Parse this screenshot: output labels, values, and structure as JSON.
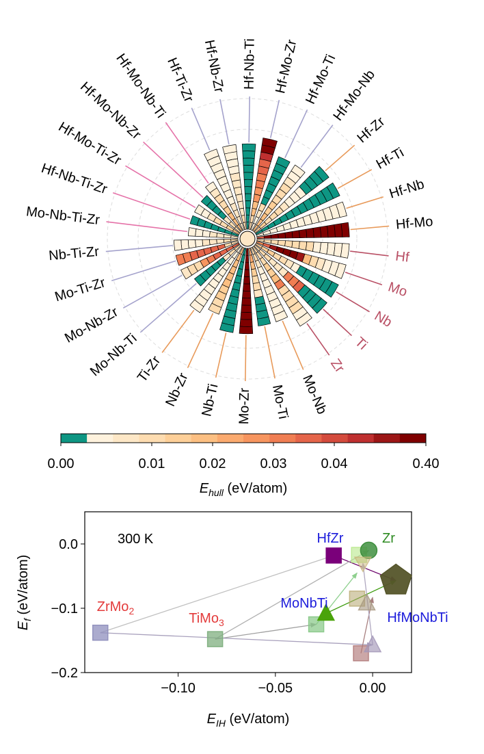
{
  "chart_data": [
    {
      "type": "radial-bar",
      "inner_radius": 0.0,
      "spokes": [
        {
          "label": "Hf",
          "group": "element",
          "values": [
            0.012,
            0.012,
            0.012,
            0.012,
            0.012,
            0.012,
            0.012,
            0.012,
            0.005,
            0.005,
            0.005,
            0.005,
            0.005
          ]
        },
        {
          "label": "Mo",
          "group": "element",
          "values": [
            0.025,
            0.035,
            0.05,
            0.25,
            0.25,
            0.12,
            0.06,
            0.018,
            0.012,
            0.008,
            0.006,
            0.005,
            0.005
          ]
        },
        {
          "label": "Nb",
          "group": "element",
          "values": [
            0.015,
            0.015,
            0.015,
            0.012,
            0.01,
            0.008,
            0.006,
            0.0,
            0.0,
            0.0,
            0.0,
            0.0,
            0.0
          ]
        },
        {
          "label": "Ti",
          "group": "element",
          "values": [
            0.012,
            0.012,
            0.01,
            0.008,
            0.008,
            0.008,
            0.03,
            0.032,
            0.035,
            0.0,
            0.0,
            0.0,
            0.0
          ]
        },
        {
          "label": "Zr",
          "group": "element",
          "values": [
            0.01,
            0.01,
            0.01,
            0.015,
            0.015,
            0.02,
            0.03,
            0.01,
            0.01,
            0.01,
            0.01,
            0.005,
            0.005
          ]
        },
        {
          "label": "Mo-Nb",
          "group": "binary",
          "values": [
            0.012,
            0.012,
            0.008,
            0.006,
            0.005,
            0.005,
            0.005,
            0.005,
            0.005,
            0.004,
            0.004
          ]
        },
        {
          "label": "Mo-Ti",
          "group": "binary",
          "values": [
            0.022,
            0.022,
            0.018,
            0.015,
            0.012,
            0.01,
            0.008,
            0.0,
            0.0,
            0.0,
            0.0
          ]
        },
        {
          "label": "Mo-Zr",
          "group": "binary",
          "values": [
            0.2,
            0.25,
            0.3,
            0.3,
            0.3,
            0.3,
            0.3,
            0.3,
            0.3,
            0.3,
            0.3,
            0.3
          ]
        },
        {
          "label": "Nb-Ti",
          "group": "binary",
          "values": [
            0.0,
            0.0,
            0.0,
            0.0,
            0.0,
            0.0,
            0.0,
            0.0,
            0.0,
            0.0,
            0.0,
            0.0
          ]
        },
        {
          "label": "Nb-Zr",
          "group": "binary",
          "values": [
            0.02,
            0.02,
            0.02,
            0.02,
            0.02,
            0.018,
            0.015,
            0.015,
            0.012,
            0.012
          ]
        },
        {
          "label": "Ti-Zr",
          "group": "binary",
          "values": [
            0.006,
            0.006,
            0.006,
            0.005,
            0.005,
            0.004,
            0.004,
            0.004,
            0.004,
            0.004,
            0.004
          ]
        },
        {
          "label": "Mo-Nb-Ti",
          "group": "ternary",
          "values": [
            0.012,
            0.01,
            0.008,
            0.0,
            0.0,
            0.0,
            0.0,
            0.0
          ]
        },
        {
          "label": "Mo-Nb-Zr",
          "group": "ternary",
          "values": [
            0.035,
            0.035,
            0.035,
            0.035,
            0.03,
            0.025,
            0.012,
            0.01,
            0.008
          ]
        },
        {
          "label": "Mo-Ti-Zr",
          "group": "ternary",
          "values": [
            0.012,
            0.012,
            0.035,
            0.035,
            0.035,
            0.035,
            0.035,
            0.03,
            0.03
          ]
        },
        {
          "label": "Nb-Ti-Zr",
          "group": "ternary",
          "values": [
            0.01,
            0.01,
            0.008,
            0.008,
            0.007,
            0.006,
            0.006,
            0.005,
            0.005
          ]
        },
        {
          "label": "Mo-Nb-Ti-Zr",
          "group": "quaternary",
          "values": [
            0.008,
            0.008,
            0.008,
            0.007,
            0.006,
            0.006,
            0.006
          ]
        },
        {
          "label": "Hf-Nb-Ti-Zr",
          "group": "quaternary",
          "values": [
            0.0,
            0.0,
            0.0,
            0.0,
            0.0,
            0.0,
            0.0
          ]
        },
        {
          "label": "Hf-Mo-Ti-Zr",
          "group": "quaternary",
          "values": [
            0.018,
            0.015,
            0.012,
            0.01,
            0.008,
            0.006,
            0.006
          ]
        },
        {
          "label": "Hf-Mo-Nb-Zr",
          "group": "quaternary",
          "values": [
            0.012,
            0.01,
            0.008,
            0.0,
            0.0,
            0.0,
            0.0
          ]
        },
        {
          "label": "Hf-Mo-Nb-Ti",
          "group": "quaternary",
          "values": [
            0.02,
            0.018,
            0.018,
            0.015,
            0.012,
            0.01,
            0.008,
            0.006
          ]
        },
        {
          "label": "Hf-Ti-Zr",
          "group": "ternary",
          "values": [
            0.008,
            0.008,
            0.007,
            0.007,
            0.006,
            0.006,
            0.005,
            0.005,
            0.005,
            0.004,
            0.004,
            0.004
          ]
        },
        {
          "label": "Hf-Nb-Zr",
          "group": "ternary",
          "values": [
            0.01,
            0.01,
            0.009,
            0.009,
            0.008,
            0.008,
            0.007,
            0.007,
            0.006,
            0.006,
            0.005,
            0.005
          ]
        },
        {
          "label": "Hf-Nb-Ti",
          "group": "ternary",
          "values": [
            0.0,
            0.0,
            0.0,
            0.0,
            0.0,
            0.0,
            0.0,
            0.0,
            0.0,
            0.0,
            0.0,
            0.0
          ]
        },
        {
          "label": "Hf-Mo-Zr",
          "group": "ternary",
          "values": [
            0.012,
            0.012,
            0.02,
            0.02,
            0.025,
            0.025,
            0.03,
            0.03,
            0.035,
            0.035,
            0.04,
            0.3,
            0.3
          ]
        },
        {
          "label": "Hf-Mo-Ti",
          "group": "ternary",
          "values": [
            0.005,
            0.005,
            0.008,
            0.012,
            0.0,
            0.0,
            0.0,
            0.0,
            0.0,
            0.0,
            0.0
          ]
        },
        {
          "label": "Hf-Mo-Nb",
          "group": "ternary",
          "values": [
            0.02,
            0.02,
            0.018,
            0.015,
            0.015,
            0.012,
            0.012,
            0.01,
            0.008,
            0.006,
            0.005
          ]
        },
        {
          "label": "Hf-Zr",
          "group": "binary",
          "values": [
            0.015,
            0.015,
            0.012,
            0.012,
            0.01,
            0.008,
            0.006,
            0.006,
            0.005,
            0.0,
            0.0,
            0.0,
            0.0
          ]
        },
        {
          "label": "Hf-Ti",
          "group": "binary",
          "values": [
            0.0,
            0.0,
            0.0,
            0.0,
            0.0,
            0.0,
            0.0,
            0.0,
            0.0,
            0.0,
            0.0,
            0.0,
            0.0
          ]
        },
        {
          "label": "Hf-Nb",
          "group": "binary",
          "values": [
            0.005,
            0.005,
            0.005,
            0.005,
            0.005,
            0.005,
            0.005,
            0.005,
            0.005,
            0.005,
            0.005,
            0.005,
            0.005
          ]
        },
        {
          "label": "Hf-Mo",
          "group": "binary",
          "values": [
            0.035,
            0.3,
            0.3,
            0.3,
            0.3,
            0.3,
            0.3,
            0.3,
            0.3,
            0.3,
            0.3,
            0.3,
            0.3
          ]
        }
      ],
      "colorbar": {
        "label_base": "E",
        "label_sub": "hull",
        "label_unit": " (eV/atom)",
        "ticks": [
          "0.00",
          "0.01",
          "0.02",
          "0.03",
          "0.04",
          "0.40"
        ],
        "colors": [
          "#0e9683",
          "#fef2dd",
          "#fde7c6",
          "#fddcb0",
          "#fdcf98",
          "#fcbf82",
          "#fbaa6f",
          "#f7955f",
          "#f07e53",
          "#e5654a",
          "#d44b3d",
          "#bf3030",
          "#9c1616",
          "#7f0000"
        ]
      },
      "group_colors": {
        "element": "#b95065",
        "binary": "#e89a5a",
        "ternary": "#a4a2cc",
        "quaternary": "#e572a8"
      }
    },
    {
      "type": "scatter",
      "xlabel_base": "E",
      "xlabel_sub": "IH",
      "xlabel_unit": " (eV/atom)",
      "ylabel_base": "E",
      "ylabel_sub": "f",
      "ylabel_unit": " (eV/atom)",
      "xlim": [
        -0.148,
        0.02
      ],
      "ylim": [
        -0.2,
        0.05
      ],
      "xticks": [
        -0.1,
        -0.05,
        0.0
      ],
      "xtick_labels": [
        "−0.10",
        "−0.05",
        "0.00"
      ],
      "yticks": [
        0.0,
        -0.1,
        -0.2
      ],
      "ytick_labels": [
        "0.0",
        "−0.1",
        "−0.2"
      ],
      "annotation": "300 K",
      "labels": [
        {
          "text": "HfZr",
          "color": "#1c1cdb"
        },
        {
          "text": "Zr",
          "color": "#2e8b22"
        },
        {
          "text": "MoNbTi",
          "color": "#1c1cdb"
        },
        {
          "text": "HfMoNbTi",
          "color": "#1c1cdb"
        },
        {
          "text": "ZrMo",
          "sub": "2",
          "color": "#e33b3b"
        },
        {
          "text": "TiMo",
          "sub": "3",
          "color": "#e33b3b"
        }
      ],
      "points": [
        {
          "x": -0.14,
          "y": -0.138,
          "marker": "square",
          "color": "#8f8fbd",
          "opacity": 0.75
        },
        {
          "x": -0.081,
          "y": -0.148,
          "marker": "square",
          "color": "#7faf7f",
          "opacity": 0.75
        },
        {
          "x": -0.029,
          "y": -0.125,
          "marker": "square",
          "color": "#86c886",
          "opacity": 0.7
        },
        {
          "x": -0.02,
          "y": -0.018,
          "marker": "square",
          "color": "#7a007a",
          "opacity": 1.0
        },
        {
          "x": -0.024,
          "y": -0.108,
          "marker": "triangle",
          "color": "#4aa30a",
          "opacity": 1.0
        },
        {
          "x": -0.007,
          "y": -0.017,
          "marker": "square",
          "color": "#b7e88a",
          "opacity": 0.6
        },
        {
          "x": -0.002,
          "y": -0.01,
          "marker": "circle",
          "color": "#3f8f3f",
          "opacity": 0.85
        },
        {
          "x": 0.012,
          "y": -0.057,
          "marker": "pentagon",
          "color": "#55552a",
          "opacity": 0.95
        },
        {
          "x": -0.008,
          "y": -0.085,
          "marker": "square",
          "color": "#b5a66e",
          "opacity": 0.55
        },
        {
          "x": -0.003,
          "y": -0.092,
          "marker": "triangle",
          "color": "#a69880",
          "opacity": 0.6
        },
        {
          "x": -0.005,
          "y": -0.03,
          "marker": "triangle-down",
          "color": "#c9b57a",
          "opacity": 0.5
        },
        {
          "x": -0.006,
          "y": -0.17,
          "marker": "square",
          "color": "#b07878",
          "opacity": 0.65
        },
        {
          "x": 0.0,
          "y": -0.157,
          "marker": "triangle",
          "color": "#a598b8",
          "opacity": 0.65
        }
      ],
      "arrows": [
        {
          "from": [
            -0.02,
            -0.018
          ],
          "to": [
            0.012,
            -0.057
          ],
          "color": "#6a006a"
        },
        {
          "from": [
            -0.024,
            -0.108
          ],
          "to": [
            0.012,
            -0.057
          ],
          "color": "#3a9a0a"
        },
        {
          "from": [
            -0.029,
            -0.125
          ],
          "to": [
            -0.008,
            -0.045
          ],
          "color": "#8fd08f"
        },
        {
          "from": [
            -0.081,
            -0.148
          ],
          "to": [
            -0.002,
            -0.01
          ],
          "color": "#b0b0b0"
        },
        {
          "from": [
            -0.14,
            -0.138
          ],
          "to": [
            -0.02,
            -0.018
          ],
          "color": "#c0c0c0"
        },
        {
          "from": [
            -0.081,
            -0.148
          ],
          "to": [
            -0.029,
            -0.125
          ],
          "color": "#a0a0a0"
        },
        {
          "from": [
            -0.14,
            -0.138
          ],
          "to": [
            0.0,
            -0.157
          ],
          "color": "#a8a0bc"
        },
        {
          "from": [
            -0.006,
            -0.17
          ],
          "to": [
            0.0,
            -0.083
          ],
          "color": "#a88080"
        },
        {
          "from": [
            0.0,
            -0.157
          ],
          "to": [
            -0.005,
            -0.03
          ],
          "color": "#b0a8c0"
        }
      ]
    }
  ]
}
